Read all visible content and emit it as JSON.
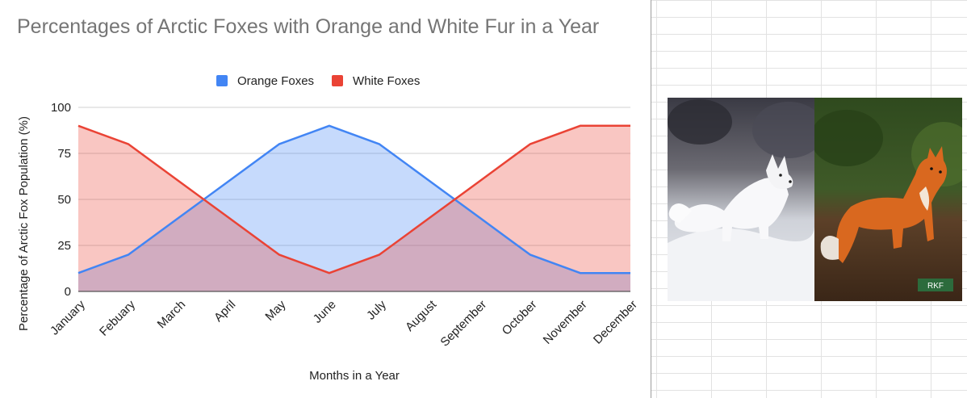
{
  "chart_data": {
    "type": "area",
    "title": "Percentages of Arctic Foxes with Orange and White Fur in a Year",
    "xlabel": "Months in a Year",
    "ylabel": "Percentage of Arctic Fox Population (%)",
    "categories": [
      "January",
      "Febuary",
      "March",
      "April",
      "May",
      "June",
      "July",
      "August",
      "September",
      "October",
      "November",
      "December"
    ],
    "ylim": [
      0,
      100
    ],
    "yticks": [
      0,
      25,
      50,
      75,
      100
    ],
    "grid": true,
    "legend_position": "top",
    "series": [
      {
        "name": "Orange Foxes",
        "color": "#4285f4",
        "values": [
          10,
          20,
          40,
          60,
          80,
          90,
          80,
          60,
          40,
          20,
          10,
          10
        ]
      },
      {
        "name": "White Foxes",
        "color": "#ea4335",
        "values": [
          90,
          80,
          60,
          40,
          20,
          10,
          20,
          40,
          60,
          80,
          90,
          90
        ]
      }
    ]
  },
  "images": [
    {
      "name": "white-arctic-fox-photo",
      "subject": "white arctic fox standing in snow"
    },
    {
      "name": "orange-fox-photo",
      "subject": "orange fox sitting on brown ground",
      "logo_text": "RKF"
    }
  ]
}
